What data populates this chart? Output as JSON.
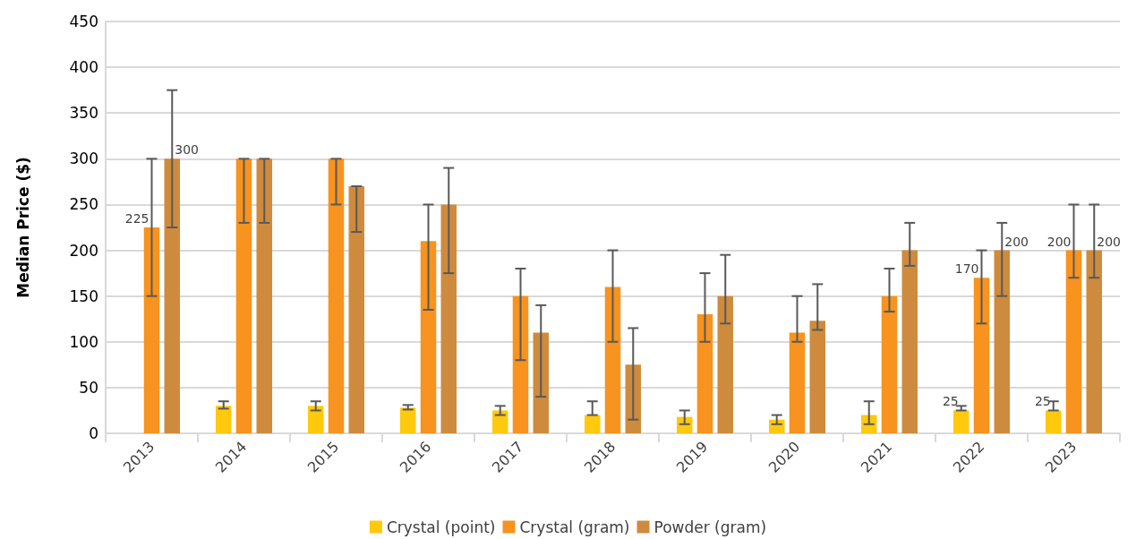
{
  "chart_data": {
    "type": "bar",
    "ylabel": "Median Price ($)",
    "categories": [
      "2013",
      "2014",
      "2015",
      "2016",
      "2017",
      "2018",
      "2019",
      "2020",
      "2021",
      "2022",
      "2023"
    ],
    "series": [
      {
        "name": "Crystal (point)",
        "color": "#ffc90e",
        "values": [
          null,
          30,
          30,
          28,
          25,
          20,
          18,
          15,
          20,
          25,
          25
        ],
        "errors": [
          null,
          [
            27,
            35
          ],
          [
            25,
            35
          ],
          [
            26,
            31
          ],
          [
            20,
            30
          ],
          [
            20,
            35
          ],
          [
            10,
            25
          ],
          [
            10,
            20
          ],
          [
            10,
            35
          ],
          [
            25,
            30
          ],
          [
            25,
            35
          ]
        ],
        "value_labels": [
          null,
          null,
          null,
          null,
          null,
          null,
          null,
          null,
          null,
          "25",
          "25"
        ]
      },
      {
        "name": "Crystal (gram)",
        "color": "#f7931e",
        "values": [
          225,
          300,
          300,
          210,
          150,
          160,
          130,
          110,
          150,
          170,
          200
        ],
        "errors": [
          [
            150,
            300
          ],
          [
            230,
            300
          ],
          [
            250,
            300
          ],
          [
            135,
            250
          ],
          [
            80,
            180
          ],
          [
            100,
            200
          ],
          [
            100,
            175
          ],
          [
            100,
            150
          ],
          [
            133,
            180
          ],
          [
            120,
            200
          ],
          [
            170,
            250
          ]
        ],
        "value_labels": [
          "225",
          null,
          null,
          null,
          null,
          null,
          null,
          null,
          null,
          "170",
          "200"
        ]
      },
      {
        "name": "Powder (gram)",
        "color": "#ce8b3e",
        "values": [
          300,
          300,
          270,
          250,
          110,
          75,
          150,
          123,
          200,
          200,
          200
        ],
        "errors": [
          [
            225,
            375
          ],
          [
            230,
            300
          ],
          [
            220,
            270
          ],
          [
            175,
            290
          ],
          [
            40,
            140
          ],
          [
            15,
            115
          ],
          [
            120,
            195
          ],
          [
            113,
            163
          ],
          [
            183,
            230
          ],
          [
            150,
            230
          ],
          [
            170,
            250
          ]
        ],
        "value_labels": [
          "300",
          null,
          null,
          null,
          null,
          null,
          null,
          null,
          null,
          "200",
          "200"
        ]
      }
    ],
    "ylim": [
      0,
      450
    ],
    "yticks": [
      0,
      50,
      100,
      150,
      200,
      250,
      300,
      350,
      400,
      450
    ],
    "grid": "y",
    "legend": "bottom"
  }
}
